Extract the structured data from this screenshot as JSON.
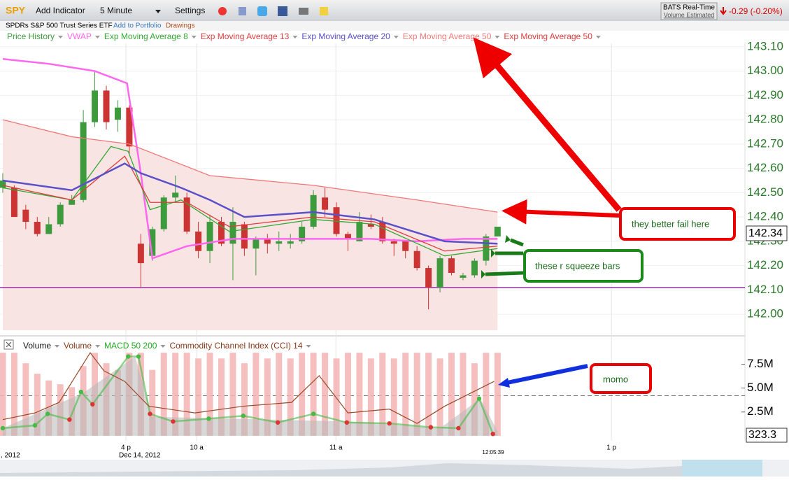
{
  "toolbar": {
    "symbol": "SPY",
    "add_indicator": "Add Indicator",
    "interval": "5 Minute",
    "settings": "Settings",
    "name": "SPDRs S&P 500 Trust Series ETF",
    "add_portfolio": "Add to Portfolio",
    "drawings": "Drawings",
    "feed": "BATS Real-Time",
    "volume_note": "Volume Estimated",
    "change": "-0.29 (-0.20%)",
    "last_price": "142.34",
    "last_volume": "323.3",
    "cursor_time": "12:05:39"
  },
  "annotations": {
    "fail": "they better fail here",
    "squeeze": "these r squeeze bars",
    "momo": "momo"
  },
  "chart_data": [
    {
      "type": "candlestick",
      "categories": [
        null,
        null,
        null,
        null,
        null,
        null,
        null,
        null,
        null,
        null,
        null,
        null,
        null,
        null,
        null,
        null,
        null,
        null,
        null,
        null,
        null,
        null,
        null,
        null,
        null,
        null,
        null,
        null,
        null,
        null,
        null,
        null,
        null,
        null,
        null,
        null,
        null,
        null,
        null,
        null,
        null,
        null,
        null,
        null
      ],
      "xlim": [
        -0.24,
        64.5
      ],
      "xticks": [
        {
          "value": 10.7,
          "label": "4 p"
        },
        {
          "value": 16.85,
          "label": "10 a"
        },
        {
          "value": 28.95,
          "label": "11 a"
        },
        {
          "value": 52.9,
          "label": "1 p"
        }
      ],
      "xticks2": [
        {
          "value": 0.66,
          "label": ", 2012"
        },
        {
          "value": 11.9,
          "label": "Dec 14, 2012"
        }
      ],
      "ylim": [
        141.934,
        143.114
      ],
      "yticks": [
        {
          "value": 142.0,
          "label": "142.00"
        },
        {
          "value": 142.1,
          "label": "142.10"
        },
        {
          "value": 142.2,
          "label": "142.20"
        },
        {
          "value": 142.3,
          "label": "142.30"
        },
        {
          "value": 142.4,
          "label": "142.40"
        },
        {
          "value": 142.5,
          "label": "142.50"
        },
        {
          "value": 142.6,
          "label": "142.60"
        },
        {
          "value": 142.7,
          "label": "142.70"
        },
        {
          "value": 142.8,
          "label": "142.80"
        },
        {
          "value": 142.9,
          "label": "142.90"
        },
        {
          "value": 143.0,
          "label": "143.00"
        },
        {
          "value": 143.1,
          "label": "143.10"
        }
      ],
      "hline": 142.11,
      "hline_color": "#9933aa",
      "grid": true,
      "series": [
        {
          "name": "Price History",
          "color": "#3d9a3d",
          "down_color": "#cc3333",
          "open": [
            142.52,
            142.52,
            142.43,
            142.38,
            142.33,
            142.37,
            142.45,
            142.47,
            142.79,
            142.92,
            142.8,
            142.85,
            142.29,
            142.24,
            142.35,
            142.48,
            142.48,
            142.34,
            142.26,
            142.38,
            142.29,
            142.37,
            142.27,
            142.31,
            142.29,
            142.29,
            142.3,
            142.36,
            142.48,
            142.44,
            142.33,
            142.3,
            142.37,
            142.38,
            142.3,
            142.3,
            142.26,
            142.19,
            142.11,
            142.23,
            142.15,
            142.16,
            142.22,
            142.32
          ],
          "close": [
            142.55,
            142.4,
            142.38,
            142.33,
            142.37,
            142.45,
            142.47,
            142.79,
            142.92,
            142.79,
            142.85,
            142.69,
            142.21,
            142.35,
            142.48,
            142.5,
            142.34,
            142.26,
            142.38,
            142.29,
            142.38,
            142.27,
            142.31,
            142.29,
            142.3,
            142.3,
            142.36,
            142.49,
            142.43,
            142.33,
            142.31,
            142.38,
            142.36,
            142.3,
            142.29,
            142.26,
            142.19,
            142.11,
            142.23,
            142.17,
            142.16,
            142.22,
            142.32,
            142.36
          ],
          "high": [
            142.58,
            142.53,
            142.45,
            142.4,
            142.4,
            142.46,
            142.49,
            142.84,
            143.0,
            142.94,
            142.88,
            142.86,
            142.33,
            142.36,
            142.49,
            142.57,
            142.5,
            142.38,
            142.41,
            142.4,
            142.44,
            142.38,
            142.32,
            142.33,
            142.34,
            142.33,
            142.38,
            142.51,
            142.52,
            142.46,
            142.34,
            142.42,
            142.41,
            142.4,
            142.31,
            142.3,
            142.28,
            142.2,
            142.24,
            142.24,
            142.17,
            142.23,
            142.33,
            142.36
          ],
          "low": [
            142.5,
            142.4,
            142.35,
            142.32,
            142.33,
            142.36,
            142.45,
            142.46,
            142.77,
            142.76,
            142.75,
            142.66,
            142.11,
            142.22,
            142.34,
            142.46,
            142.33,
            142.23,
            142.21,
            142.28,
            142.14,
            142.24,
            142.16,
            142.25,
            142.26,
            142.27,
            142.29,
            142.35,
            142.4,
            142.32,
            142.26,
            142.3,
            142.35,
            142.29,
            142.24,
            142.23,
            142.18,
            142.02,
            142.09,
            142.16,
            142.14,
            142.15,
            142.2,
            142.32
          ]
        },
        {
          "name": "VWAP",
          "color": "#ff66ee",
          "x": [
            0,
            4,
            8,
            10.8,
            12,
            13,
            16,
            20,
            24,
            28,
            32,
            36,
            40,
            43
          ],
          "values": [
            143.05,
            143.03,
            143.0,
            142.95,
            142.58,
            142.23,
            142.28,
            142.31,
            142.31,
            142.31,
            142.31,
            142.3,
            142.31,
            142.31
          ]
        },
        {
          "name": "Exp Moving Average 8",
          "color": "#33aa33",
          "x": [
            0,
            6,
            9.4,
            10.9,
            12.8,
            15.5,
            19.7,
            27,
            32.3,
            38.4,
            43
          ],
          "values": [
            142.52,
            142.47,
            142.69,
            142.67,
            142.43,
            142.47,
            142.34,
            142.39,
            142.37,
            142.24,
            142.27
          ]
        },
        {
          "name": "Exp Moving Average 13",
          "color": "#e03c3c",
          "x": [
            0,
            6,
            10.6,
            12.8,
            16,
            19.7,
            27,
            32.3,
            38.4,
            43
          ],
          "values": [
            142.53,
            142.47,
            142.65,
            142.46,
            142.46,
            142.36,
            142.4,
            142.38,
            142.26,
            142.28
          ]
        },
        {
          "name": "Exp Moving Average 20",
          "color": "#5a50c8",
          "x": [
            0,
            6,
            10.6,
            12,
            15.5,
            18,
            21,
            27,
            32.3,
            38.4,
            43
          ],
          "values": [
            142.55,
            142.51,
            142.62,
            142.58,
            142.52,
            142.47,
            142.4,
            142.42,
            142.39,
            142.3,
            142.29
          ]
        },
        {
          "name": "Exp Moving Average 50",
          "color": "#f07878",
          "fill": "#f9e4e4",
          "x": [
            0,
            6,
            11,
            18,
            27,
            36,
            43
          ],
          "values": [
            142.8,
            142.73,
            142.7,
            142.57,
            142.53,
            142.47,
            142.42
          ]
        },
        {
          "name": "Exp Moving Average 50",
          "color": "#e03c3c",
          "x": [],
          "values": []
        }
      ]
    },
    {
      "type": "combo",
      "xlim": [
        -0.24,
        64.5
      ],
      "ylim": [
        -0.3,
        9.0
      ],
      "yticks": [
        {
          "value": 2.5,
          "label": "2.5M"
        },
        {
          "value": 5.0,
          "label": "5.0M"
        },
        {
          "value": 7.5,
          "label": "7.5M"
        }
      ],
      "hline": 4.2,
      "series": [
        {
          "name": "Volume",
          "kind": "area",
          "color": "#b8b8b8",
          "legend_color": "#111111",
          "x": [
            0,
            7,
            11.5,
            13,
            20,
            30,
            38,
            41.5,
            43
          ],
          "values": [
            0.8,
            4.5,
            8.3,
            2.0,
            1.8,
            1.5,
            0.8,
            3.9,
            0.5
          ]
        },
        {
          "name": "Volume",
          "kind": "bar",
          "color": "#f4b4b4",
          "legend_color": "#8a3a1a",
          "values": [
            8.7,
            8.7,
            7.6,
            6.5,
            5.8,
            5.4,
            5.1,
            7.3,
            8.7,
            7.6,
            6.9,
            8.7,
            8.7,
            6.9,
            8.7,
            8.7,
            8.7,
            8.1,
            8.7,
            8.1,
            8.7,
            7.6,
            8.7,
            8.1,
            8.7,
            8.1,
            8.7,
            8.7,
            8.7,
            8.1,
            8.7,
            8.7,
            8.1,
            8.7,
            8.1,
            8.7,
            8.7,
            8.7,
            8.1,
            8.7,
            8.7,
            7.6,
            8.7,
            8.7
          ]
        },
        {
          "name": "MACD 50 200",
          "kind": "dots",
          "color": "#44bb44",
          "down_color": "#dd3333",
          "legend_color": "#22aa22",
          "x": [
            0,
            2.8,
            3.9,
            5.8,
            6.8,
            7.8,
            10.9,
            11.8,
            12.8,
            14.8,
            17.9,
            20.9,
            23.9,
            27,
            29.9,
            33.6,
            37.2,
            39.6,
            41.4,
            42.6
          ],
          "values": [
            0.8,
            1.1,
            2.3,
            1.7,
            4.6,
            3.3,
            8.3,
            8.3,
            2.3,
            1.5,
            1.8,
            2.1,
            1.4,
            2.3,
            1.4,
            1.3,
            0.9,
            0.8,
            3.9,
            0.2
          ]
        },
        {
          "name": "Commodity Channel Index (CCI) 14",
          "kind": "line",
          "color": "#9a4a2a",
          "legend_color": "#8a3a1a",
          "x": [
            0,
            2.8,
            4.9,
            7.6,
            8.8,
            10.6,
            12.7,
            16.7,
            20.9,
            25.1,
            27.5,
            30,
            33.6,
            36,
            38.4,
            42.7
          ],
          "values": [
            1.7,
            2.4,
            3.5,
            8.7,
            6.8,
            5.7,
            3.1,
            2.4,
            3.1,
            3.5,
            6.3,
            2.4,
            2.8,
            1.3,
            3.1,
            5.7
          ]
        }
      ]
    }
  ]
}
